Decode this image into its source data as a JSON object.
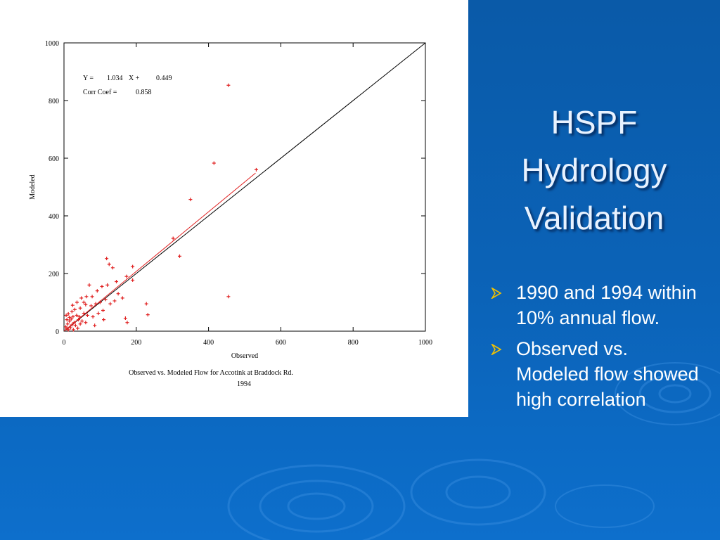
{
  "slide": {
    "title_lines": [
      "HSPF",
      "Hydrology",
      "Validation"
    ],
    "bullets": [
      "1990 and 1994 within 10% annual flow.",
      "Observed vs. Modeled flow showed high correlation"
    ],
    "colors": {
      "background": "#0b63b8",
      "title": "#e8f2ff",
      "bullet_arrow": "#f2c200"
    }
  },
  "chart_data": {
    "type": "scatter",
    "xlabel": "Observed",
    "ylabel": "Modeled",
    "caption_lines": [
      "Observed vs. Modeled Flow for Accotink at Braddock Rd.",
      "1994"
    ],
    "xlim": [
      0,
      1000
    ],
    "ylim": [
      0,
      1000
    ],
    "xticks": [
      0,
      200,
      400,
      600,
      800,
      1000
    ],
    "yticks": [
      0,
      200,
      400,
      600,
      800,
      1000
    ],
    "annotation": {
      "eq_label": "Y =",
      "slope": "1.034",
      "x_term": "X +",
      "intercept": "0.449",
      "corr_label": "Corr Coef =",
      "corr": "0.858"
    },
    "reference_line": {
      "x": [
        0,
        1000
      ],
      "y": [
        0,
        1000
      ]
    },
    "fit_line": {
      "x": [
        0,
        530
      ],
      "y": [
        0.449,
        548.5
      ]
    },
    "series": [
      {
        "marker": "+",
        "color": "#e02020",
        "points": [
          [
            455,
            853
          ],
          [
            415,
            583
          ],
          [
            532,
            560
          ],
          [
            350,
            457
          ],
          [
            302,
            322
          ],
          [
            320,
            260
          ],
          [
            455,
            120
          ],
          [
            228,
            95
          ],
          [
            232,
            57
          ],
          [
            118,
            252
          ],
          [
            125,
            232
          ],
          [
            135,
            220
          ],
          [
            190,
            224
          ],
          [
            173,
            190
          ],
          [
            190,
            177
          ],
          [
            145,
            172
          ],
          [
            120,
            160
          ],
          [
            105,
            155
          ],
          [
            70,
            160
          ],
          [
            150,
            130
          ],
          [
            162,
            115
          ],
          [
            140,
            105
          ],
          [
            115,
            110
          ],
          [
            100,
            100
          ],
          [
            128,
            95
          ],
          [
            88,
            95
          ],
          [
            75,
            88
          ],
          [
            60,
            92
          ],
          [
            45,
            80
          ],
          [
            30,
            75
          ],
          [
            22,
            68
          ],
          [
            55,
            62
          ],
          [
            65,
            55
          ],
          [
            80,
            50
          ],
          [
            95,
            62
          ],
          [
            108,
            72
          ],
          [
            170,
            45
          ],
          [
            175,
            30
          ],
          [
            110,
            40
          ],
          [
            85,
            20
          ],
          [
            60,
            30
          ],
          [
            40,
            40
          ],
          [
            35,
            55
          ],
          [
            25,
            50
          ],
          [
            20,
            42
          ],
          [
            15,
            35
          ],
          [
            10,
            25
          ],
          [
            5,
            15
          ],
          [
            8,
            8
          ],
          [
            12,
            5
          ],
          [
            18,
            12
          ],
          [
            22,
            22
          ],
          [
            28,
            30
          ],
          [
            32,
            20
          ],
          [
            38,
            10
          ],
          [
            45,
            25
          ],
          [
            50,
            35
          ],
          [
            15,
            48
          ],
          [
            8,
            40
          ],
          [
            26,
            5
          ],
          [
            42,
            50
          ],
          [
            55,
            100
          ],
          [
            62,
            120
          ],
          [
            78,
            120
          ],
          [
            92,
            140
          ],
          [
            48,
            115
          ],
          [
            36,
            100
          ],
          [
            24,
            90
          ],
          [
            12,
            60
          ],
          [
            6,
            55
          ]
        ]
      }
    ]
  }
}
